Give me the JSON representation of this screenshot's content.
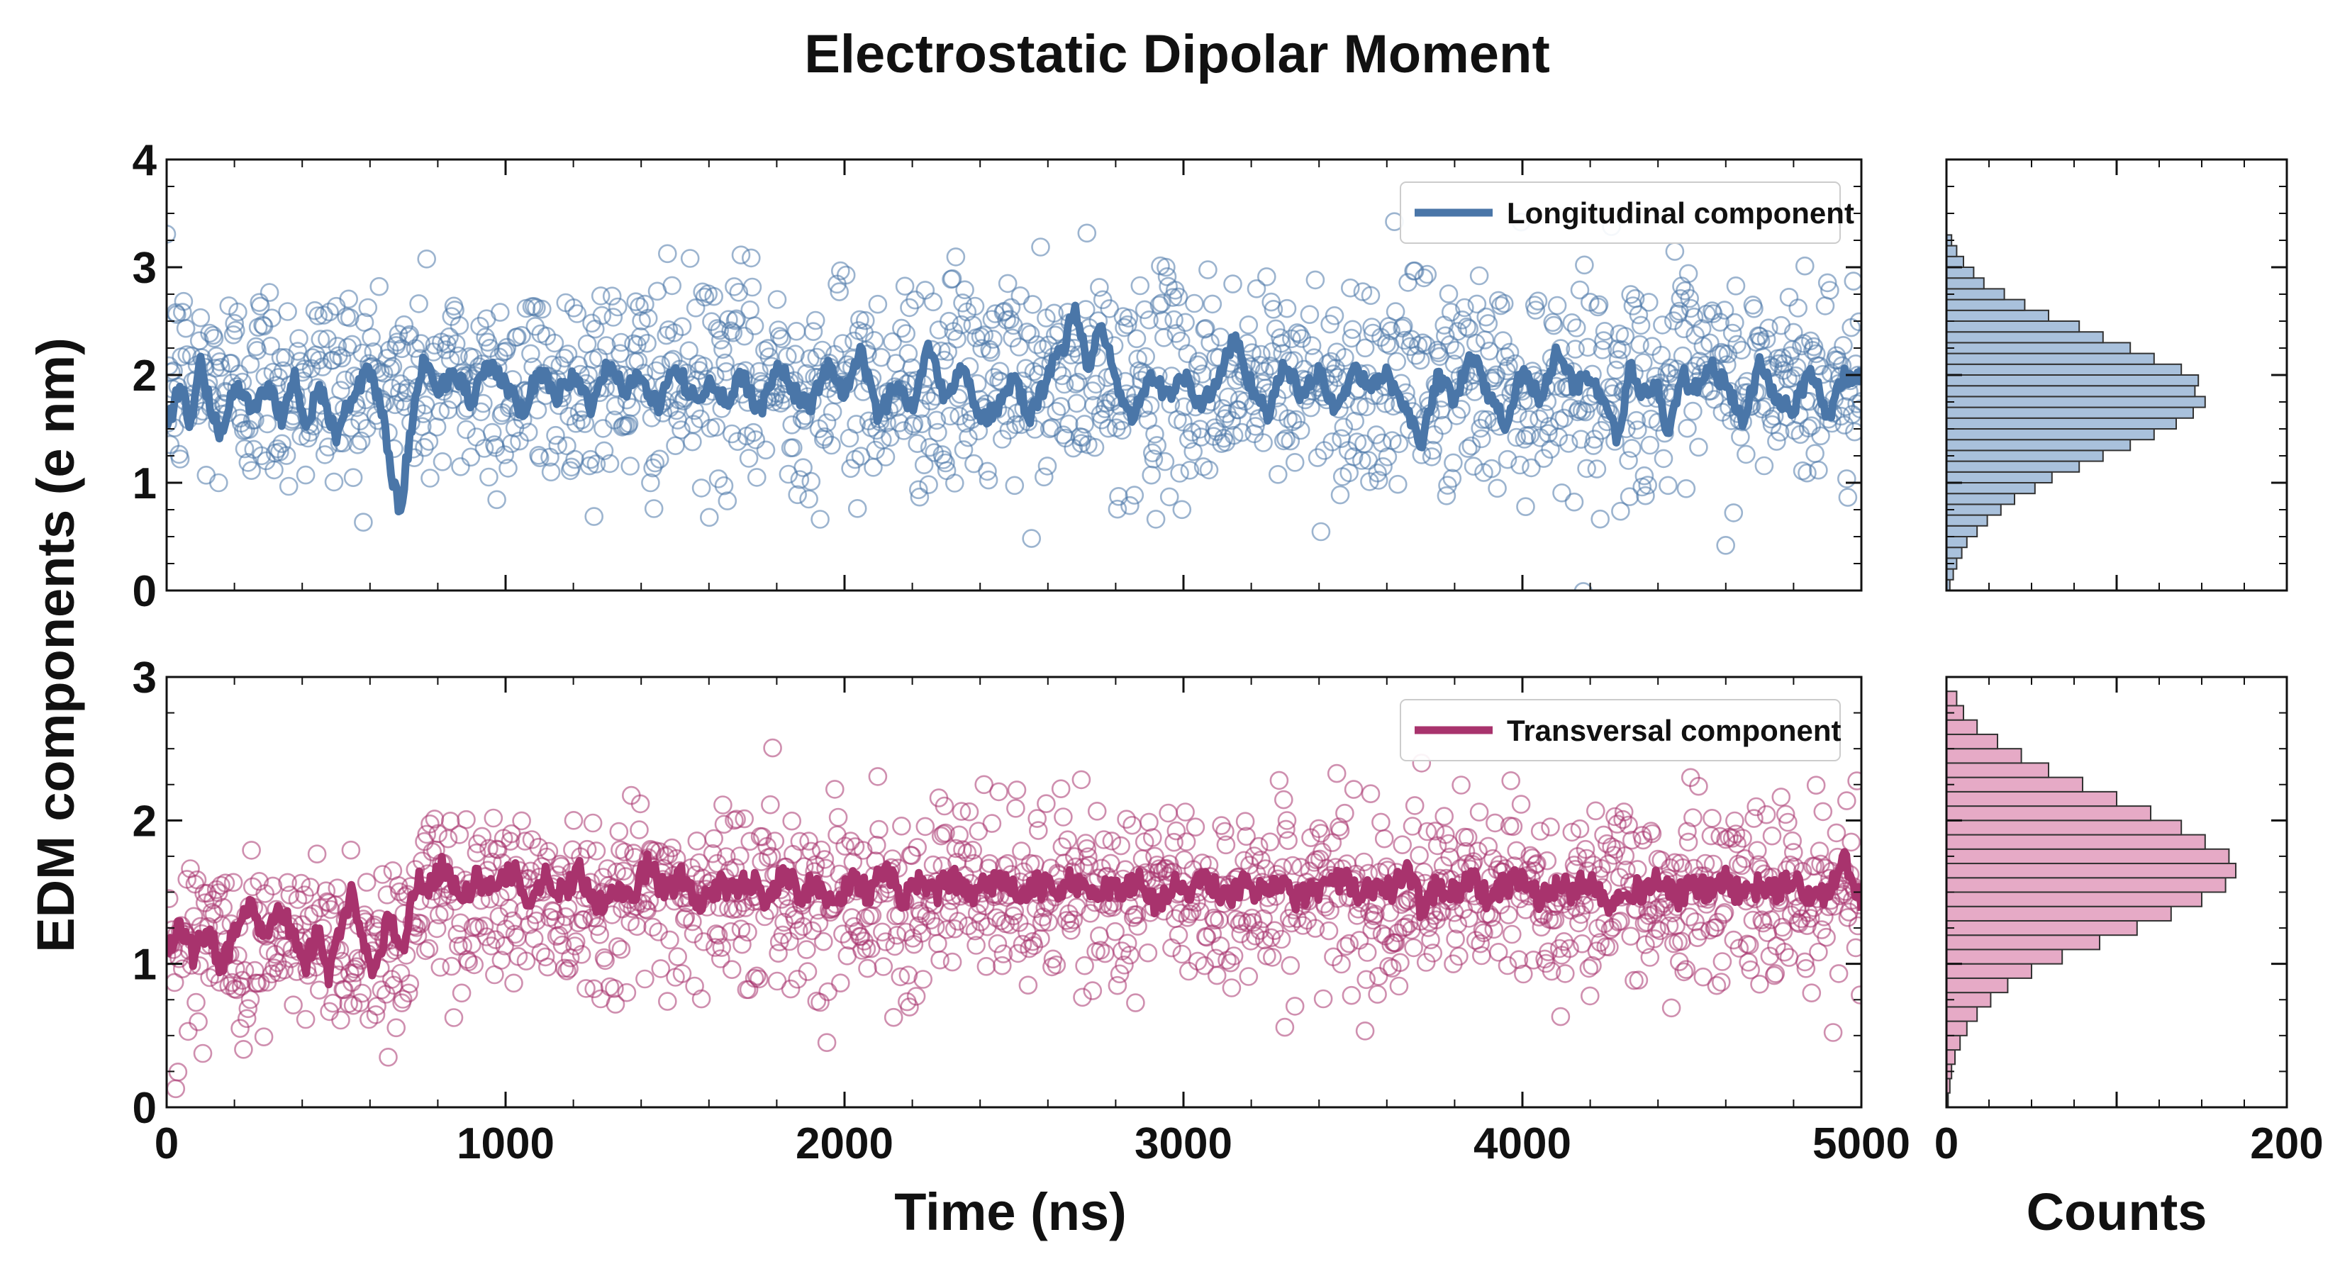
{
  "chart_data": {
    "title": "Electrostatic Dipolar Moment",
    "ylabel": "EDM components (e nm)",
    "xlabel": "Time (ns)",
    "hist_xlabel": "Counts",
    "x_range": [
      0,
      5000
    ],
    "x_ticks": [
      "0",
      "1000",
      "2000",
      "3000",
      "4000",
      "5000"
    ],
    "hist_range": [
      0,
      200
    ],
    "hist_ticks": [
      "0",
      "200"
    ],
    "panels": [
      {
        "type": "scatter+line",
        "legend": "Longitudinal component",
        "color": "#4a76a8",
        "fill": "#a9c1dc",
        "ylim": [
          0,
          4
        ],
        "y_ticks": [
          "0",
          "1",
          "2",
          "3",
          "4"
        ],
        "scatter_mean": 1.92,
        "scatter_sd": 0.5,
        "smooth_anchors": [
          [
            0,
            1.5
          ],
          [
            40,
            1.9
          ],
          [
            70,
            1.55
          ],
          [
            100,
            2.1
          ],
          [
            130,
            1.7
          ],
          [
            160,
            1.45
          ],
          [
            200,
            1.9
          ],
          [
            250,
            1.7
          ],
          [
            300,
            1.9
          ],
          [
            340,
            1.6
          ],
          [
            380,
            2.0
          ],
          [
            410,
            1.5
          ],
          [
            450,
            1.9
          ],
          [
            500,
            1.45
          ],
          [
            550,
            1.8
          ],
          [
            600,
            2.05
          ],
          [
            640,
            1.6
          ],
          [
            670,
            0.95
          ],
          [
            690,
            0.75
          ],
          [
            720,
            1.5
          ],
          [
            760,
            2.15
          ],
          [
            800,
            1.85
          ],
          [
            850,
            2.05
          ],
          [
            900,
            1.75
          ],
          [
            950,
            2.1
          ],
          [
            1000,
            1.9
          ],
          [
            1050,
            1.65
          ],
          [
            1100,
            2.05
          ],
          [
            1150,
            1.8
          ],
          [
            1200,
            2.0
          ],
          [
            1250,
            1.7
          ],
          [
            1300,
            2.1
          ],
          [
            1350,
            1.85
          ],
          [
            1400,
            2.0
          ],
          [
            1450,
            1.7
          ],
          [
            1500,
            2.1
          ],
          [
            1550,
            1.8
          ],
          [
            1600,
            1.9
          ],
          [
            1650,
            1.75
          ],
          [
            1700,
            2.0
          ],
          [
            1750,
            1.65
          ],
          [
            1800,
            2.1
          ],
          [
            1850,
            1.85
          ],
          [
            1900,
            1.7
          ],
          [
            1950,
            2.1
          ],
          [
            2000,
            1.8
          ],
          [
            2050,
            2.2
          ],
          [
            2100,
            1.6
          ],
          [
            2150,
            1.9
          ],
          [
            2200,
            1.7
          ],
          [
            2250,
            2.3
          ],
          [
            2300,
            1.75
          ],
          [
            2350,
            2.15
          ],
          [
            2400,
            1.55
          ],
          [
            2450,
            1.7
          ],
          [
            2500,
            1.95
          ],
          [
            2550,
            1.6
          ],
          [
            2600,
            2.0
          ],
          [
            2650,
            2.3
          ],
          [
            2680,
            2.65
          ],
          [
            2720,
            2.05
          ],
          [
            2760,
            2.5
          ],
          [
            2800,
            1.9
          ],
          [
            2850,
            1.6
          ],
          [
            2900,
            2.0
          ],
          [
            2950,
            1.8
          ],
          [
            3000,
            2.0
          ],
          [
            3050,
            1.7
          ],
          [
            3100,
            1.95
          ],
          [
            3150,
            2.35
          ],
          [
            3200,
            1.9
          ],
          [
            3250,
            1.65
          ],
          [
            3300,
            2.1
          ],
          [
            3350,
            1.8
          ],
          [
            3400,
            2.05
          ],
          [
            3450,
            1.6
          ],
          [
            3500,
            2.1
          ],
          [
            3550,
            1.85
          ],
          [
            3600,
            2.0
          ],
          [
            3650,
            1.75
          ],
          [
            3700,
            1.35
          ],
          [
            3750,
            2.0
          ],
          [
            3800,
            1.75
          ],
          [
            3850,
            2.2
          ],
          [
            3900,
            1.8
          ],
          [
            3950,
            1.55
          ],
          [
            4000,
            2.05
          ],
          [
            4050,
            1.8
          ],
          [
            4100,
            2.2
          ],
          [
            4150,
            1.9
          ],
          [
            4200,
            2.0
          ],
          [
            4250,
            1.7
          ],
          [
            4280,
            1.35
          ],
          [
            4320,
            2.1
          ],
          [
            4350,
            1.8
          ],
          [
            4400,
            1.9
          ],
          [
            4430,
            1.35
          ],
          [
            4470,
            2.05
          ],
          [
            4500,
            1.8
          ],
          [
            4550,
            2.1
          ],
          [
            4600,
            1.9
          ],
          [
            4650,
            1.55
          ],
          [
            4700,
            2.1
          ],
          [
            4750,
            1.8
          ],
          [
            4800,
            1.7
          ],
          [
            4850,
            2.05
          ],
          [
            4900,
            1.6
          ],
          [
            4950,
            2.0
          ],
          [
            5000,
            2.0
          ]
        ],
        "hist_bins_lo": 0.0,
        "hist_bin_width": 0.1,
        "hist_counts": [
          2,
          4,
          6,
          9,
          12,
          18,
          24,
          32,
          40,
          52,
          62,
          78,
          92,
          108,
          122,
          135,
          145,
          152,
          146,
          148,
          138,
          122,
          108,
          92,
          78,
          60,
          46,
          34,
          22,
          16,
          10,
          6,
          3
        ]
      },
      {
        "type": "scatter+line",
        "legend": "Transversal component",
        "color": "#a8336d",
        "fill": "#e6aac6",
        "ylim": [
          0,
          3
        ],
        "y_ticks": [
          "0",
          "1",
          "2",
          "3"
        ],
        "scatter_mean": 1.48,
        "scatter_sd": 0.32,
        "smooth_anchors": [
          [
            0,
            1.1
          ],
          [
            40,
            1.3
          ],
          [
            80,
            1.05
          ],
          [
            120,
            1.25
          ],
          [
            160,
            1.0
          ],
          [
            200,
            1.2
          ],
          [
            250,
            1.4
          ],
          [
            300,
            1.15
          ],
          [
            330,
            1.45
          ],
          [
            370,
            1.2
          ],
          [
            410,
            1.0
          ],
          [
            450,
            1.25
          ],
          [
            480,
            0.9
          ],
          [
            520,
            1.3
          ],
          [
            550,
            1.5
          ],
          [
            580,
            1.1
          ],
          [
            620,
            0.95
          ],
          [
            650,
            1.3
          ],
          [
            700,
            1.15
          ],
          [
            740,
            1.6
          ],
          [
            780,
            1.55
          ],
          [
            820,
            1.7
          ],
          [
            870,
            1.45
          ],
          [
            920,
            1.6
          ],
          [
            970,
            1.5
          ],
          [
            1020,
            1.65
          ],
          [
            1070,
            1.45
          ],
          [
            1120,
            1.6
          ],
          [
            1170,
            1.5
          ],
          [
            1220,
            1.65
          ],
          [
            1270,
            1.4
          ],
          [
            1320,
            1.55
          ],
          [
            1370,
            1.45
          ],
          [
            1420,
            1.7
          ],
          [
            1470,
            1.5
          ],
          [
            1520,
            1.6
          ],
          [
            1570,
            1.4
          ],
          [
            1620,
            1.55
          ],
          [
            1670,
            1.5
          ],
          [
            1720,
            1.6
          ],
          [
            1770,
            1.45
          ],
          [
            1820,
            1.65
          ],
          [
            1870,
            1.5
          ],
          [
            1920,
            1.55
          ],
          [
            1970,
            1.4
          ],
          [
            2020,
            1.6
          ],
          [
            2070,
            1.5
          ],
          [
            2120,
            1.65
          ],
          [
            2170,
            1.45
          ],
          [
            2220,
            1.55
          ],
          [
            2270,
            1.5
          ],
          [
            2320,
            1.6
          ],
          [
            2370,
            1.45
          ],
          [
            2420,
            1.55
          ],
          [
            2470,
            1.6
          ],
          [
            2520,
            1.45
          ],
          [
            2570,
            1.55
          ],
          [
            2620,
            1.5
          ],
          [
            2670,
            1.6
          ],
          [
            2720,
            1.45
          ],
          [
            2770,
            1.55
          ],
          [
            2820,
            1.5
          ],
          [
            2870,
            1.6
          ],
          [
            2920,
            1.4
          ],
          [
            2970,
            1.55
          ],
          [
            3020,
            1.5
          ],
          [
            3070,
            1.6
          ],
          [
            3120,
            1.45
          ],
          [
            3170,
            1.55
          ],
          [
            3220,
            1.5
          ],
          [
            3270,
            1.6
          ],
          [
            3320,
            1.45
          ],
          [
            3370,
            1.5
          ],
          [
            3420,
            1.55
          ],
          [
            3470,
            1.6
          ],
          [
            3520,
            1.45
          ],
          [
            3570,
            1.55
          ],
          [
            3620,
            1.5
          ],
          [
            3660,
            1.7
          ],
          [
            3700,
            1.4
          ],
          [
            3750,
            1.55
          ],
          [
            3800,
            1.5
          ],
          [
            3850,
            1.6
          ],
          [
            3900,
            1.45
          ],
          [
            3950,
            1.55
          ],
          [
            4000,
            1.6
          ],
          [
            4050,
            1.45
          ],
          [
            4100,
            1.55
          ],
          [
            4150,
            1.5
          ],
          [
            4200,
            1.6
          ],
          [
            4250,
            1.4
          ],
          [
            4300,
            1.55
          ],
          [
            4350,
            1.5
          ],
          [
            4400,
            1.6
          ],
          [
            4450,
            1.45
          ],
          [
            4500,
            1.55
          ],
          [
            4550,
            1.5
          ],
          [
            4600,
            1.6
          ],
          [
            4650,
            1.45
          ],
          [
            4700,
            1.55
          ],
          [
            4750,
            1.5
          ],
          [
            4800,
            1.6
          ],
          [
            4850,
            1.45
          ],
          [
            4900,
            1.5
          ],
          [
            4950,
            1.7
          ],
          [
            5000,
            1.45
          ]
        ],
        "hist_bins_lo": 0.0,
        "hist_bin_width": 0.1,
        "hist_counts": [
          1,
          2,
          3,
          5,
          8,
          12,
          18,
          26,
          36,
          50,
          68,
          90,
          112,
          132,
          150,
          164,
          170,
          166,
          152,
          138,
          120,
          100,
          80,
          60,
          44,
          30,
          18,
          10,
          6,
          3
        ]
      }
    ]
  }
}
